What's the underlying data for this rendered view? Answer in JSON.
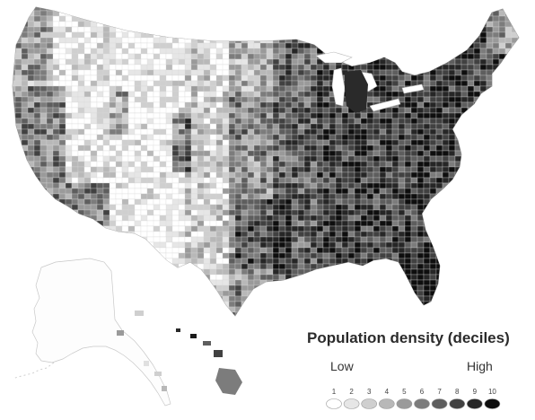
{
  "legend": {
    "title": "Population density (deciles)",
    "low_label": "Low",
    "high_label": "High",
    "deciles": [
      "1",
      "2",
      "3",
      "4",
      "5",
      "6",
      "7",
      "8",
      "9",
      "10"
    ],
    "colors": [
      "#ffffff",
      "#e6e6e6",
      "#cfcfcf",
      "#b8b8b8",
      "#9a9a9a",
      "#7c7c7c",
      "#5e5e5e",
      "#414141",
      "#262626",
      "#0e0e0e"
    ]
  },
  "map": {
    "regions": [
      "Contiguous United States",
      "Alaska",
      "Hawaii"
    ],
    "pattern": "Density highest in the eastern half, coastal California and Pacific Northwest; lowest across the Great Plains, Mountain West and Alaska"
  }
}
